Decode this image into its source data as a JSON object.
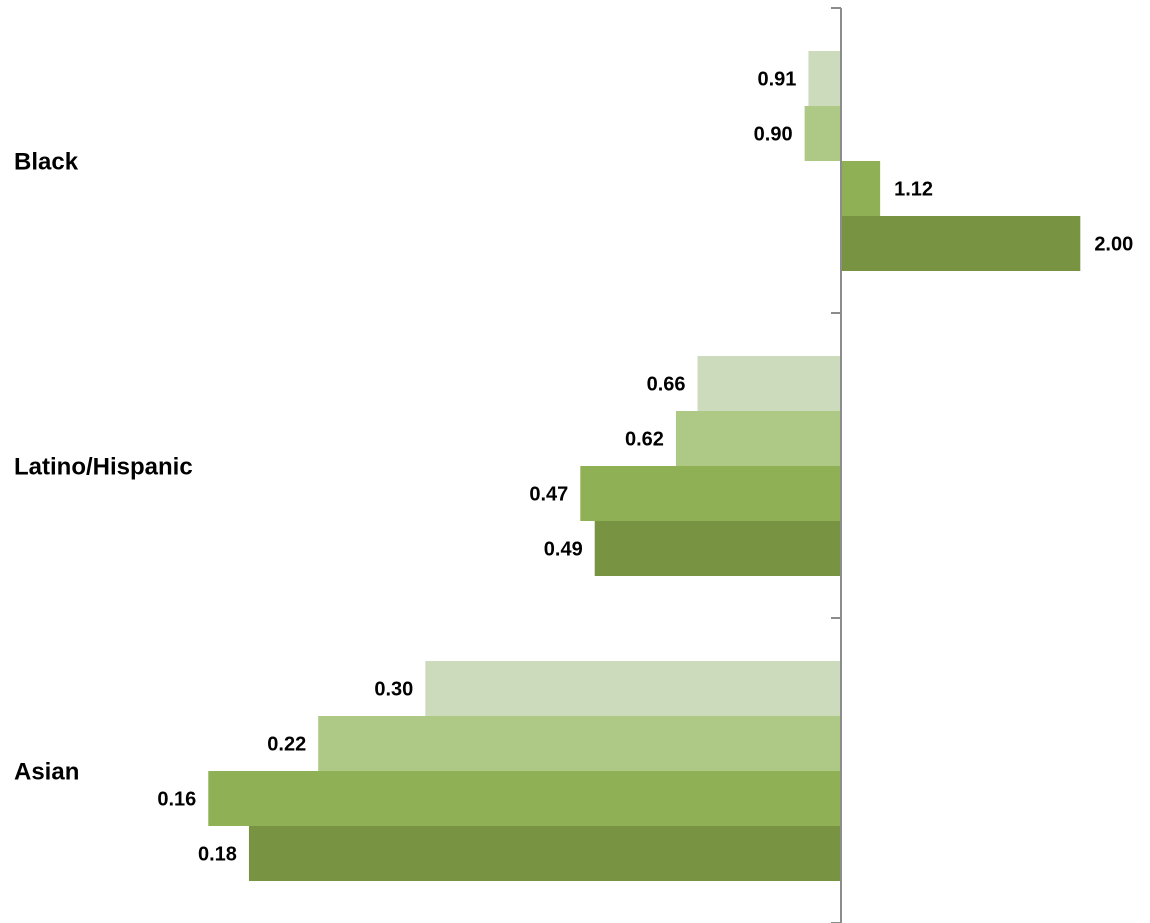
{
  "chart_data": {
    "type": "bar",
    "orientation": "horizontal",
    "scale": "log",
    "baseline": 1,
    "title": "",
    "xlabel": "",
    "ylabel": "",
    "categories": [
      "Black",
      "Latino/Hispanic",
      "Asian"
    ],
    "series": [
      {
        "values": [
          0.91,
          0.66,
          0.3
        ],
        "color": "#ccdbbb"
      },
      {
        "values": [
          0.9,
          0.62,
          0.22
        ],
        "color": "#aec886"
      },
      {
        "values": [
          1.12,
          0.47,
          0.16
        ],
        "color": "#8fb055"
      },
      {
        "values": [
          2.0,
          0.49,
          0.18
        ],
        "color": "#789443"
      }
    ],
    "value_labels": [
      [
        "0.91",
        "0.90",
        "1.12",
        "2.00"
      ],
      [
        "0.66",
        "0.62",
        "0.47",
        "0.49"
      ],
      [
        "0.30",
        "0.22",
        "0.16",
        "0.18"
      ]
    ],
    "legend": "none",
    "grid": false
  }
}
